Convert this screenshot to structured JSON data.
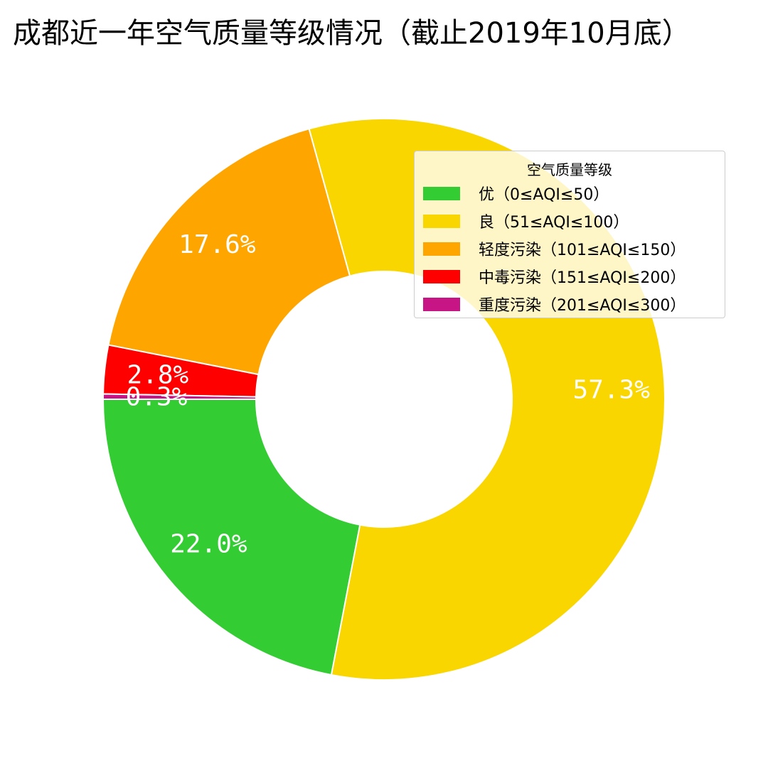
{
  "chart_data": {
    "type": "pie",
    "subtype": "donut",
    "title": "成都近一年空气质量等级情况（截止2019年10月底）",
    "legend_title": "空气质量等级",
    "legend_position": "top-right",
    "slices": [
      {
        "label": "优（0≤AQI≤50）",
        "value": 22.0,
        "value_label": "22.0%",
        "color": "#33cc33"
      },
      {
        "label": "良（51≤AQI≤100）",
        "value": 57.3,
        "value_label": "57.3%",
        "color": "#f9d600"
      },
      {
        "label": "轻度污染（101≤AQI≤150）",
        "value": 17.6,
        "value_label": "17.6%",
        "color": "#ffa500"
      },
      {
        "label": "中毒污染（151≤AQI≤200）",
        "value": 2.8,
        "value_label": "2.8%",
        "color": "#ff0000"
      },
      {
        "label": "重度污染（201≤AQI≤300）",
        "value": 0.3,
        "value_label": "0.3%",
        "color": "#c71585"
      }
    ]
  }
}
